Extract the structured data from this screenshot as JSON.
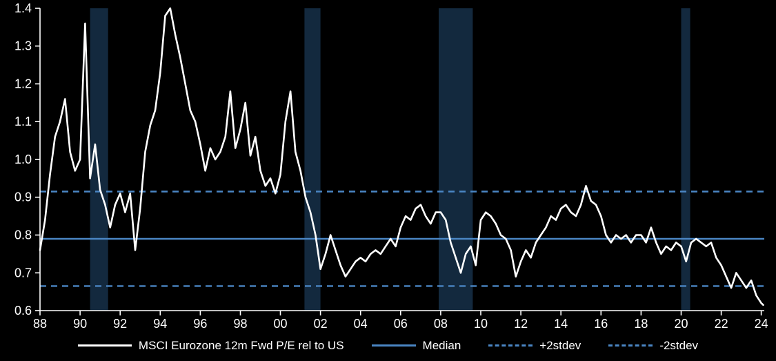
{
  "chart_data": {
    "type": "line",
    "title": "",
    "xlabel": "",
    "ylabel": "",
    "xlim": [
      1988,
      2024.15
    ],
    "ylim": [
      0.6,
      1.4
    ],
    "grid": false,
    "legend_position": "bottom",
    "y_ticks": [
      0.6,
      0.7,
      0.8,
      0.9,
      1.0,
      1.1,
      1.2,
      1.3,
      1.4
    ],
    "x_ticks": [
      {
        "value": 1988,
        "label": "88"
      },
      {
        "value": 1990,
        "label": "90"
      },
      {
        "value": 1992,
        "label": "92"
      },
      {
        "value": 1994,
        "label": "94"
      },
      {
        "value": 1996,
        "label": "96"
      },
      {
        "value": 1998,
        "label": "98"
      },
      {
        "value": 2000,
        "label": "00"
      },
      {
        "value": 2002,
        "label": "02"
      },
      {
        "value": 2004,
        "label": "04"
      },
      {
        "value": 2006,
        "label": "06"
      },
      {
        "value": 2008,
        "label": "08"
      },
      {
        "value": 2010,
        "label": "10"
      },
      {
        "value": 2012,
        "label": "12"
      },
      {
        "value": 2014,
        "label": "14"
      },
      {
        "value": 2016,
        "label": "16"
      },
      {
        "value": 2018,
        "label": "18"
      },
      {
        "value": 2020,
        "label": "20"
      },
      {
        "value": 2022,
        "label": "22"
      },
      {
        "value": 2024,
        "label": "24"
      }
    ],
    "reference_lines": {
      "median": 0.79,
      "plus2stdev": 0.915,
      "minus2stdev": 0.665
    },
    "recession_bands": [
      [
        1990.5,
        1991.4
      ],
      [
        2001.2,
        2002.0
      ],
      [
        2007.9,
        2009.6
      ],
      [
        2020.0,
        2020.45
      ]
    ],
    "colors": {
      "background": "#000000",
      "series": "#ffffff",
      "reference": "#4a86c4",
      "band": "#13293e",
      "axis": "#ffffff",
      "text": "#ffffff"
    },
    "legend": [
      {
        "label": "MSCI Eurozone 12m Fwd P/E rel to US",
        "style": "solid",
        "color": "#ffffff"
      },
      {
        "label": "Median",
        "style": "solid",
        "color": "#4a86c4"
      },
      {
        "label": "+2stdev",
        "style": "dashed",
        "color": "#4a86c4"
      },
      {
        "label": "-2stdev",
        "style": "dashed",
        "color": "#4a86c4"
      }
    ],
    "series": [
      {
        "name": "MSCI Eurozone 12m Fwd P/E rel to US",
        "points": [
          [
            1988.0,
            0.76
          ],
          [
            1988.25,
            0.84
          ],
          [
            1988.5,
            0.96
          ],
          [
            1988.75,
            1.06
          ],
          [
            1989.0,
            1.1
          ],
          [
            1989.25,
            1.16
          ],
          [
            1989.5,
            1.02
          ],
          [
            1989.75,
            0.97
          ],
          [
            1990.0,
            1.0
          ],
          [
            1990.25,
            1.36
          ],
          [
            1990.5,
            0.95
          ],
          [
            1990.75,
            1.04
          ],
          [
            1991.0,
            0.92
          ],
          [
            1991.25,
            0.88
          ],
          [
            1991.5,
            0.82
          ],
          [
            1991.75,
            0.88
          ],
          [
            1992.0,
            0.91
          ],
          [
            1992.25,
            0.86
          ],
          [
            1992.5,
            0.91
          ],
          [
            1992.75,
            0.76
          ],
          [
            1993.0,
            0.87
          ],
          [
            1993.25,
            1.02
          ],
          [
            1993.5,
            1.09
          ],
          [
            1993.75,
            1.13
          ],
          [
            1994.0,
            1.23
          ],
          [
            1994.25,
            1.38
          ],
          [
            1994.5,
            1.4
          ],
          [
            1994.75,
            1.33
          ],
          [
            1995.0,
            1.27
          ],
          [
            1995.25,
            1.2
          ],
          [
            1995.5,
            1.13
          ],
          [
            1995.75,
            1.1
          ],
          [
            1996.0,
            1.04
          ],
          [
            1996.25,
            0.97
          ],
          [
            1996.5,
            1.03
          ],
          [
            1996.75,
            1.0
          ],
          [
            1997.0,
            1.02
          ],
          [
            1997.25,
            1.06
          ],
          [
            1997.5,
            1.18
          ],
          [
            1997.75,
            1.03
          ],
          [
            1998.0,
            1.08
          ],
          [
            1998.25,
            1.15
          ],
          [
            1998.5,
            1.01
          ],
          [
            1998.75,
            1.06
          ],
          [
            1999.0,
            0.97
          ],
          [
            1999.25,
            0.93
          ],
          [
            1999.5,
            0.95
          ],
          [
            1999.75,
            0.91
          ],
          [
            2000.0,
            0.96
          ],
          [
            2000.25,
            1.1
          ],
          [
            2000.5,
            1.18
          ],
          [
            2000.75,
            1.02
          ],
          [
            2001.0,
            0.97
          ],
          [
            2001.25,
            0.9
          ],
          [
            2001.5,
            0.86
          ],
          [
            2001.75,
            0.8
          ],
          [
            2002.0,
            0.71
          ],
          [
            2002.25,
            0.75
          ],
          [
            2002.5,
            0.8
          ],
          [
            2002.75,
            0.76
          ],
          [
            2003.0,
            0.72
          ],
          [
            2003.25,
            0.69
          ],
          [
            2003.5,
            0.71
          ],
          [
            2003.75,
            0.73
          ],
          [
            2004.0,
            0.74
          ],
          [
            2004.25,
            0.73
          ],
          [
            2004.5,
            0.75
          ],
          [
            2004.75,
            0.76
          ],
          [
            2005.0,
            0.75
          ],
          [
            2005.25,
            0.77
          ],
          [
            2005.5,
            0.79
          ],
          [
            2005.75,
            0.77
          ],
          [
            2006.0,
            0.82
          ],
          [
            2006.25,
            0.85
          ],
          [
            2006.5,
            0.84
          ],
          [
            2006.75,
            0.87
          ],
          [
            2007.0,
            0.88
          ],
          [
            2007.25,
            0.85
          ],
          [
            2007.5,
            0.83
          ],
          [
            2007.75,
            0.86
          ],
          [
            2008.0,
            0.86
          ],
          [
            2008.25,
            0.84
          ],
          [
            2008.5,
            0.78
          ],
          [
            2008.75,
            0.74
          ],
          [
            2009.0,
            0.7
          ],
          [
            2009.25,
            0.75
          ],
          [
            2009.5,
            0.77
          ],
          [
            2009.75,
            0.72
          ],
          [
            2010.0,
            0.84
          ],
          [
            2010.25,
            0.86
          ],
          [
            2010.5,
            0.85
          ],
          [
            2010.75,
            0.83
          ],
          [
            2011.0,
            0.8
          ],
          [
            2011.25,
            0.79
          ],
          [
            2011.5,
            0.76
          ],
          [
            2011.75,
            0.69
          ],
          [
            2012.0,
            0.73
          ],
          [
            2012.25,
            0.76
          ],
          [
            2012.5,
            0.74
          ],
          [
            2012.75,
            0.78
          ],
          [
            2013.0,
            0.8
          ],
          [
            2013.25,
            0.82
          ],
          [
            2013.5,
            0.85
          ],
          [
            2013.75,
            0.84
          ],
          [
            2014.0,
            0.87
          ],
          [
            2014.25,
            0.88
          ],
          [
            2014.5,
            0.86
          ],
          [
            2014.75,
            0.85
          ],
          [
            2015.0,
            0.88
          ],
          [
            2015.25,
            0.93
          ],
          [
            2015.5,
            0.89
          ],
          [
            2015.75,
            0.88
          ],
          [
            2016.0,
            0.85
          ],
          [
            2016.25,
            0.8
          ],
          [
            2016.5,
            0.78
          ],
          [
            2016.75,
            0.8
          ],
          [
            2017.0,
            0.79
          ],
          [
            2017.25,
            0.8
          ],
          [
            2017.5,
            0.78
          ],
          [
            2017.75,
            0.8
          ],
          [
            2018.0,
            0.8
          ],
          [
            2018.25,
            0.78
          ],
          [
            2018.5,
            0.82
          ],
          [
            2018.75,
            0.78
          ],
          [
            2019.0,
            0.75
          ],
          [
            2019.25,
            0.77
          ],
          [
            2019.5,
            0.76
          ],
          [
            2019.75,
            0.78
          ],
          [
            2020.0,
            0.77
          ],
          [
            2020.25,
            0.73
          ],
          [
            2020.5,
            0.78
          ],
          [
            2020.75,
            0.79
          ],
          [
            2021.0,
            0.78
          ],
          [
            2021.25,
            0.77
          ],
          [
            2021.5,
            0.78
          ],
          [
            2021.75,
            0.74
          ],
          [
            2022.0,
            0.72
          ],
          [
            2022.25,
            0.69
          ],
          [
            2022.5,
            0.66
          ],
          [
            2022.75,
            0.7
          ],
          [
            2023.0,
            0.68
          ],
          [
            2023.25,
            0.66
          ],
          [
            2023.5,
            0.68
          ],
          [
            2023.75,
            0.64
          ],
          [
            2024.0,
            0.62
          ],
          [
            2024.1,
            0.615
          ]
        ]
      }
    ]
  }
}
